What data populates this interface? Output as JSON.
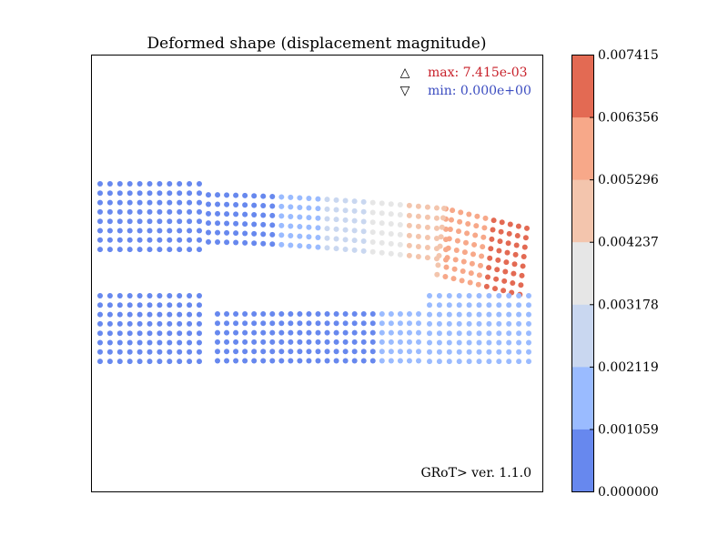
{
  "chart_data": {
    "type": "scatter",
    "title": "Deformed shape (displacement magnitude)",
    "xlabel": "",
    "ylabel": "",
    "grid": false,
    "legend": "top-right",
    "max_label": "max: 7.415e-03",
    "min_label": "min: 0.000e+00",
    "max_symbol": "△",
    "min_symbol": "▽",
    "max_color": "#c8202a",
    "min_color": "#3b4cc0",
    "version": "GRoT> ver. 1.1.0",
    "colorbar": {
      "ticks": [
        "0.000000",
        "0.001059",
        "0.002119",
        "0.003178",
        "0.004237",
        "0.005296",
        "0.006356",
        "0.007415"
      ],
      "range": [
        0.0,
        0.007415
      ],
      "colors": [
        "#6788ee",
        "#9abbff",
        "#c9d7f0",
        "#e6e6e6",
        "#f3c5ad",
        "#f7a889",
        "#e36a53"
      ]
    },
    "point_color": "displacement magnitude",
    "parts": [
      {
        "name": "upper-left-block",
        "cols": 11,
        "rows": 8,
        "displacement_range": [
          0.0,
          0.0
        ]
      },
      {
        "name": "upper-beam",
        "cols": 27,
        "rows": 6,
        "displacement_range": [
          0.0,
          0.0074
        ]
      },
      {
        "name": "upper-right-block",
        "cols": 11,
        "rows": 11,
        "displacement_range": [
          0.0052,
          0.0074
        ]
      },
      {
        "name": "lower-left-block",
        "cols": 11,
        "rows": 8,
        "displacement_range": [
          0.0,
          0.0
        ]
      },
      {
        "name": "lower-beam",
        "cols": 23,
        "rows": 6,
        "displacement_range": [
          0.0,
          0.0016
        ]
      },
      {
        "name": "lower-right-block",
        "cols": 11,
        "rows": 8,
        "displacement_range": [
          0.0012,
          0.0016
        ]
      }
    ]
  }
}
